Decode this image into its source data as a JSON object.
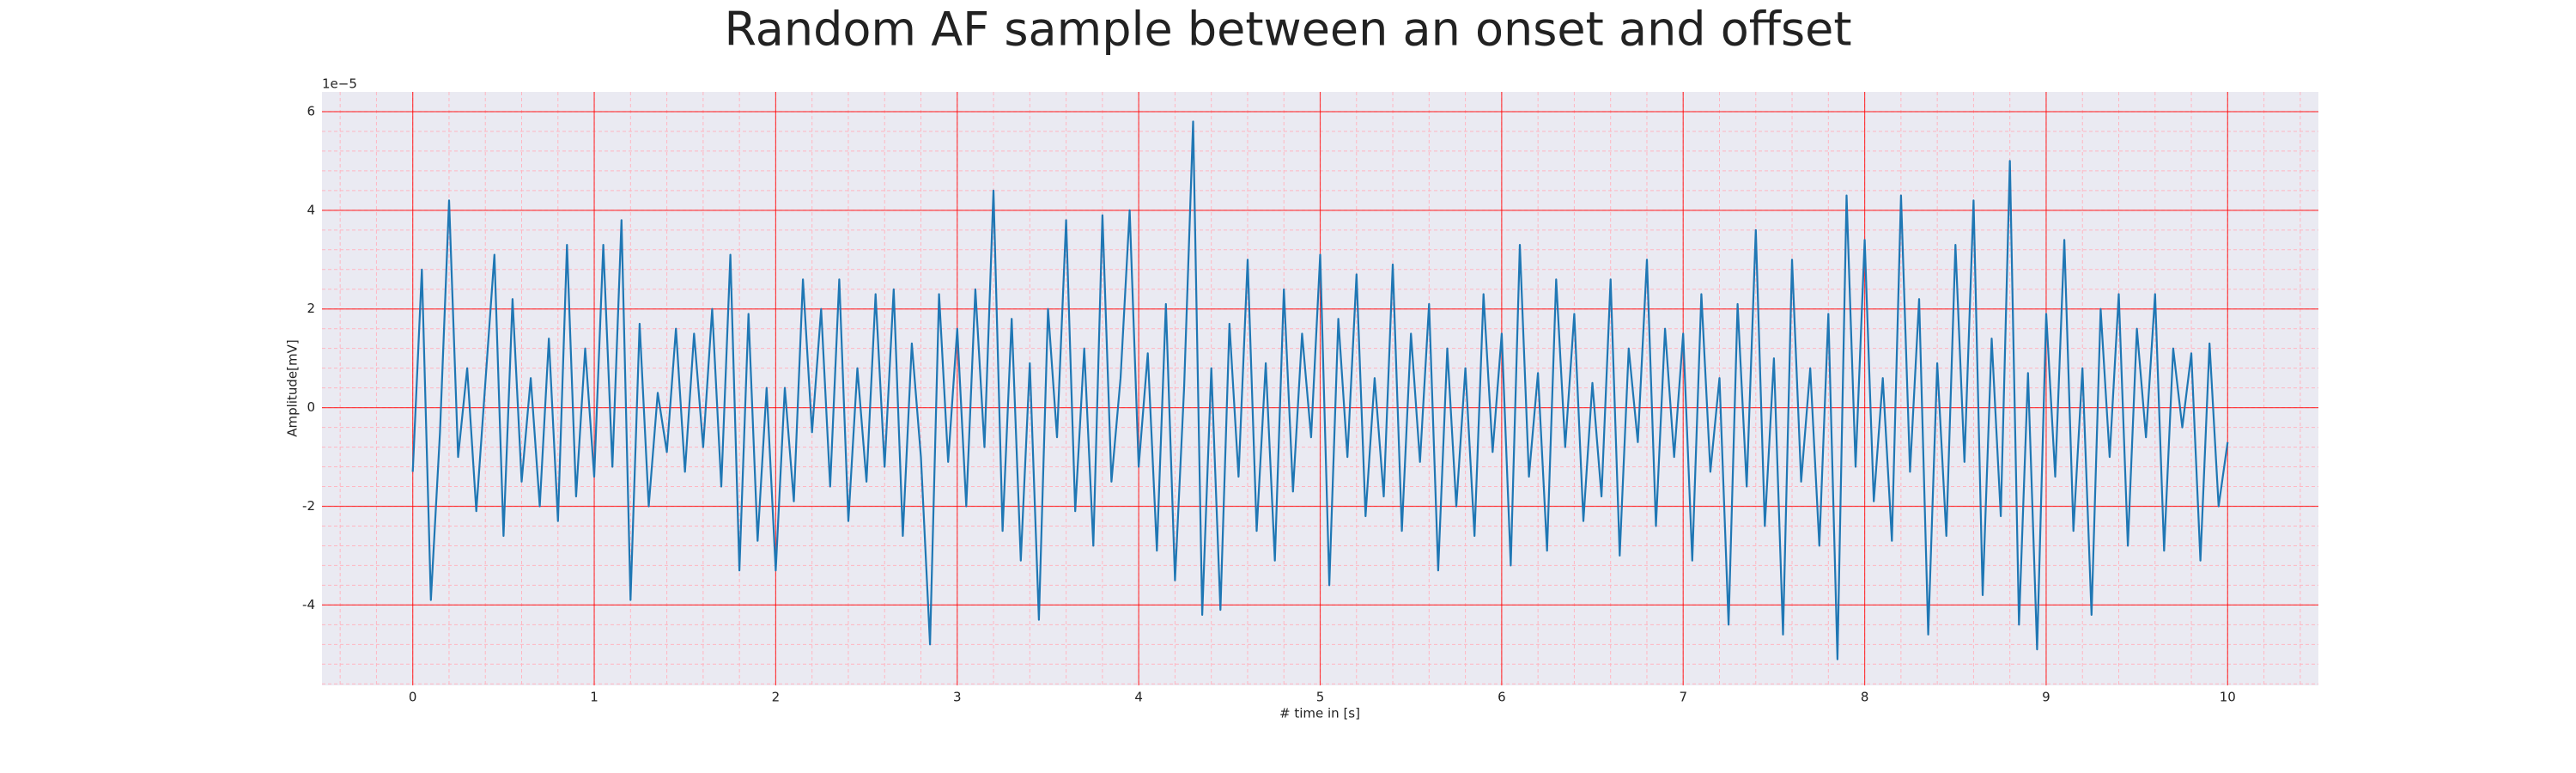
{
  "chart_data": {
    "type": "line",
    "title": "Random AF sample between an onset and offset",
    "x_label": "# time in [s]",
    "y_label": "Amplitude[mV]",
    "y_offset_text": "1e−5",
    "xlim": [
      -0.5,
      10.5
    ],
    "ylim": [
      -5.63,
      6.4
    ],
    "xticks": [
      0,
      1,
      2,
      3,
      4,
      5,
      6,
      7,
      8,
      9,
      10
    ],
    "yticks": [
      -4,
      -2,
      0,
      2,
      4,
      6
    ],
    "grid": {
      "major": true,
      "minor": true,
      "major_color": "#ff0000",
      "minor_color": "#ffb6c1"
    },
    "background": "#eaeaf2",
    "x": [
      0,
      0.05,
      0.1,
      0.15,
      0.2,
      0.25,
      0.3,
      0.35,
      0.4,
      0.45,
      0.5,
      0.55,
      0.6,
      0.65,
      0.7,
      0.75,
      0.8,
      0.85,
      0.9,
      0.95,
      1,
      1.05,
      1.1,
      1.15,
      1.2,
      1.25,
      1.3,
      1.35,
      1.4,
      1.45,
      1.5,
      1.55,
      1.6,
      1.65,
      1.7,
      1.75,
      1.8,
      1.85,
      1.9,
      1.95,
      2,
      2.05,
      2.1,
      2.15,
      2.2,
      2.25,
      2.3,
      2.35,
      2.4,
      2.45,
      2.5,
      2.55,
      2.6,
      2.65,
      2.7,
      2.75,
      2.8,
      2.85,
      2.9,
      2.95,
      3,
      3.05,
      3.1,
      3.15,
      3.2,
      3.25,
      3.3,
      3.35,
      3.4,
      3.45,
      3.5,
      3.55,
      3.6,
      3.65,
      3.7,
      3.75,
      3.8,
      3.85,
      3.9,
      3.95,
      4,
      4.05,
      4.1,
      4.15,
      4.2,
      4.25,
      4.3,
      4.35,
      4.4,
      4.45,
      4.5,
      4.55,
      4.6,
      4.65,
      4.7,
      4.75,
      4.8,
      4.85,
      4.9,
      4.95,
      5,
      5.05,
      5.1,
      5.15,
      5.2,
      5.25,
      5.3,
      5.35,
      5.4,
      5.45,
      5.5,
      5.55,
      5.6,
      5.65,
      5.7,
      5.75,
      5.8,
      5.85,
      5.9,
      5.95,
      6,
      6.05,
      6.1,
      6.15,
      6.2,
      6.25,
      6.3,
      6.35,
      6.4,
      6.45,
      6.5,
      6.55,
      6.6,
      6.65,
      6.7,
      6.75,
      6.8,
      6.85,
      6.9,
      6.95,
      7,
      7.05,
      7.1,
      7.15,
      7.2,
      7.25,
      7.3,
      7.35,
      7.4,
      7.45,
      7.5,
      7.55,
      7.6,
      7.65,
      7.7,
      7.75,
      7.8,
      7.85,
      7.9,
      7.95,
      8,
      8.05,
      8.1,
      8.15,
      8.2,
      8.25,
      8.3,
      8.35,
      8.4,
      8.45,
      8.5,
      8.55,
      8.6,
      8.65,
      8.7,
      8.75,
      8.8,
      8.85,
      8.9,
      8.95,
      9,
      9.05,
      9.1,
      9.15,
      9.2,
      9.25,
      9.3,
      9.35,
      9.4,
      9.45,
      9.5,
      9.55,
      9.6,
      9.65,
      9.7,
      9.75,
      9.8,
      9.85,
      9.9,
      9.95,
      10
    ],
    "series": [
      {
        "color": "#1f77b4",
        "values": [
          -1.3,
          2.8,
          -3.9,
          -0.5,
          4.2,
          -1.0,
          0.8,
          -2.1,
          0.5,
          3.1,
          -2.6,
          2.2,
          -1.5,
          0.6,
          -2.0,
          1.4,
          -2.3,
          3.3,
          -1.8,
          1.2,
          -1.4,
          3.3,
          -1.2,
          3.8,
          -3.9,
          1.7,
          -2.0,
          0.3,
          -0.9,
          1.6,
          -1.3,
          1.5,
          -0.8,
          2.0,
          -1.6,
          3.1,
          -3.3,
          1.9,
          -2.7,
          0.4,
          -3.3,
          0.4,
          -1.9,
          2.6,
          -0.5,
          2.0,
          -1.6,
          2.6,
          -2.3,
          0.8,
          -1.5,
          2.3,
          -1.2,
          2.4,
          -2.6,
          1.3,
          -1.0,
          -4.8,
          2.3,
          -1.1,
          1.6,
          -2.0,
          2.4,
          -0.8,
          4.4,
          -2.5,
          1.8,
          -3.1,
          0.9,
          -4.3,
          2.0,
          -0.6,
          3.8,
          -2.1,
          1.2,
          -2.8,
          3.9,
          -1.5,
          0.6,
          4.0,
          -1.2,
          1.1,
          -2.9,
          2.1,
          -3.5,
          0.4,
          5.8,
          -4.2,
          0.8,
          -4.1,
          1.7,
          -1.4,
          3.0,
          -2.5,
          0.9,
          -3.1,
          2.4,
          -1.7,
          1.5,
          -0.6,
          3.1,
          -3.6,
          1.8,
          -1.0,
          2.7,
          -2.2,
          0.6,
          -1.8,
          2.9,
          -2.5,
          1.5,
          -1.1,
          2.1,
          -3.3,
          1.2,
          -2.0,
          0.8,
          -2.6,
          2.3,
          -0.9,
          1.5,
          -3.2,
          3.3,
          -1.4,
          0.7,
          -2.9,
          2.6,
          -0.8,
          1.9,
          -2.3,
          0.5,
          -1.8,
          2.6,
          -3.0,
          1.2,
          -0.7,
          3.0,
          -2.4,
          1.6,
          -1.0,
          1.5,
          -3.1,
          2.3,
          -1.3,
          0.6,
          -4.4,
          2.1,
          -1.6,
          3.6,
          -2.4,
          1.0,
          -4.6,
          3.0,
          -1.5,
          0.8,
          -2.8,
          1.9,
          -5.1,
          4.3,
          -1.2,
          3.4,
          -1.9,
          0.6,
          -2.7,
          4.3,
          -1.3,
          2.2,
          -4.6,
          0.9,
          -2.6,
          3.3,
          -1.1,
          4.2,
          -3.8,
          1.4,
          -2.2,
          5.0,
          -4.4,
          0.7,
          -4.9,
          1.9,
          -1.4,
          3.4,
          -2.5,
          0.8,
          -4.2,
          2.0,
          -1.0,
          2.3,
          -2.8,
          1.6,
          -0.6,
          2.3,
          -2.9,
          1.2,
          -0.4,
          1.1,
          -3.1,
          1.3,
          -2.0,
          -0.7
        ]
      }
    ]
  }
}
